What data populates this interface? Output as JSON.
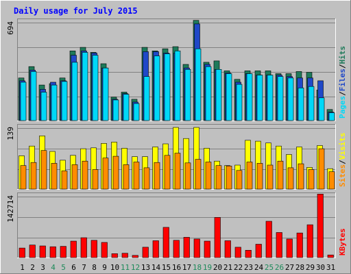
{
  "chart_data": [
    {
      "type": "bar",
      "title": "Daily usage for July 2015",
      "categories": [
        "1",
        "2",
        "3",
        "4",
        "5",
        "6",
        "7",
        "8",
        "9",
        "10",
        "11",
        "12",
        "13",
        "14",
        "15",
        "16",
        "17",
        "18",
        "19",
        "20",
        "21",
        "22",
        "23",
        "24",
        "25",
        "26",
        "27",
        "28",
        "29",
        "30",
        "31"
      ],
      "weekend_days": [
        "4",
        "5",
        "11",
        "12",
        "18",
        "19",
        "25",
        "26"
      ],
      "ymax_label": "694",
      "ylim": [
        0,
        694
      ],
      "right_label_parts": [
        "Pages",
        "Files",
        "Hits"
      ],
      "series": [
        {
          "name": "Hits",
          "color": "#1e7a5a",
          "values": [
            300,
            380,
            250,
            260,
            300,
            490,
            515,
            480,
            400,
            165,
            200,
            150,
            515,
            490,
            505,
            520,
            395,
            705,
            410,
            420,
            350,
            290,
            350,
            350,
            350,
            330,
            330,
            345,
            340,
            215,
            78
          ]
        },
        {
          "name": "Files",
          "color": "#1f48c8",
          "values": [
            280,
            355,
            220,
            270,
            280,
            460,
            490,
            475,
            370,
            150,
            190,
            130,
            485,
            485,
            475,
            475,
            370,
            680,
            395,
            360,
            335,
            270,
            330,
            320,
            320,
            320,
            310,
            300,
            300,
            280,
            60
          ]
        },
        {
          "name": "Pages",
          "color": "#00d8f8",
          "values": [
            270,
            345,
            200,
            250,
            275,
            410,
            480,
            460,
            370,
            145,
            185,
            120,
            310,
            455,
            470,
            490,
            360,
            505,
            380,
            360,
            330,
            255,
            330,
            320,
            320,
            310,
            300,
            230,
            240,
            160,
            55
          ]
        }
      ]
    },
    {
      "type": "bar",
      "categories": [
        "1",
        "2",
        "3",
        "4",
        "5",
        "6",
        "7",
        "8",
        "9",
        "10",
        "11",
        "12",
        "13",
        "14",
        "15",
        "16",
        "17",
        "18",
        "19",
        "20",
        "21",
        "22",
        "23",
        "24",
        "25",
        "26",
        "27",
        "28",
        "29",
        "30",
        "31"
      ],
      "ymax_label": "139",
      "ylim": [
        0,
        139
      ],
      "right_label_parts": [
        "Sites",
        "Visits"
      ],
      "series": [
        {
          "name": "Visits",
          "color": "#ffff00",
          "values": [
            75,
            97,
            120,
            85,
            65,
            76,
            91,
            93,
            103,
            106,
            92,
            73,
            73,
            95,
            102,
            139,
            114,
            139,
            92,
            63,
            53,
            54,
            110,
            108,
            104,
            97,
            78,
            95,
            49,
            98,
            46
          ]
        },
        {
          "name": "Sites",
          "color": "#ff8c00",
          "values": [
            53,
            60,
            87,
            58,
            41,
            55,
            63,
            44,
            70,
            74,
            55,
            61,
            48,
            60,
            76,
            81,
            59,
            67,
            61,
            53,
            52,
            42,
            61,
            58,
            54,
            63,
            48,
            57,
            44,
            91,
            39
          ]
        }
      ]
    },
    {
      "type": "bar",
      "categories": [
        "1",
        "2",
        "3",
        "4",
        "5",
        "6",
        "7",
        "8",
        "9",
        "10",
        "11",
        "12",
        "13",
        "14",
        "15",
        "16",
        "17",
        "18",
        "19",
        "20",
        "21",
        "22",
        "23",
        "24",
        "25",
        "26",
        "27",
        "28",
        "29",
        "30",
        "31"
      ],
      "ymax_label": "142714",
      "ylim": [
        0,
        142714
      ],
      "right_label_parts": [
        "KBytes"
      ],
      "series": [
        {
          "name": "KBytes",
          "color": "#ff0000",
          "values": [
            22000,
            29000,
            27000,
            25000,
            26000,
            38000,
            46000,
            40000,
            35000,
            9000,
            10000,
            5000,
            24000,
            39000,
            70000,
            40000,
            47000,
            43000,
            38000,
            93000,
            39000,
            24000,
            17000,
            31000,
            84000,
            58000,
            43000,
            57000,
            76000,
            147000,
            6000
          ]
        }
      ]
    }
  ],
  "colors": {
    "background": "#c0c0c0",
    "plot": "#c0c0c0",
    "title": "#0000ff",
    "weekday_label": "#000000",
    "weekend_label": "#1e8a5a"
  }
}
